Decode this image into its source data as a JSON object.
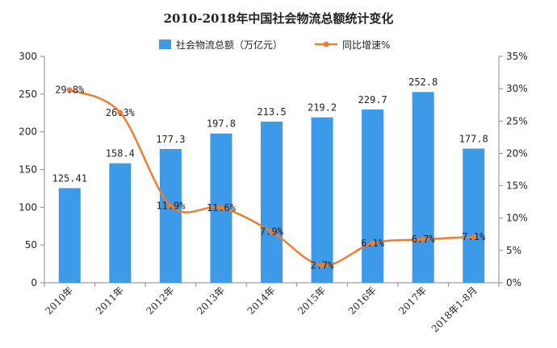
{
  "chart_data": {
    "type": "bar",
    "title": "2010-2018年中国社会物流总额统计变化",
    "categories": [
      "2010年",
      "2011年",
      "2012年",
      "2013年",
      "2014年",
      "2015年",
      "2016年",
      "2017年",
      "2018年1-8月"
    ],
    "series": [
      {
        "name": "社会物流总额（万亿元）",
        "type": "bar",
        "axis": "left",
        "values": [
          125.41,
          158.4,
          177.3,
          197.8,
          213.5,
          219.2,
          229.7,
          252.8,
          177.8
        ],
        "labels": [
          "125.41",
          "158.4",
          "177.3",
          "197.8",
          "213.5",
          "219.2",
          "229.7",
          "252.8",
          "177.8"
        ]
      },
      {
        "name": "同比增速%",
        "type": "line",
        "axis": "right",
        "values": [
          29.8,
          26.3,
          11.9,
          11.6,
          7.9,
          2.7,
          6.1,
          6.7,
          7.1
        ],
        "labels": [
          "29.8%",
          "26.3%",
          "11.9%",
          "11.6%",
          "7.9%",
          "2.7%",
          "6.1%",
          "6.7%",
          "7.1%"
        ]
      }
    ],
    "ylim_left": [
      0,
      300
    ],
    "yticks_left": [
      "0",
      "50",
      "100",
      "150",
      "200",
      "250",
      "300"
    ],
    "ylim_right": [
      0,
      35
    ],
    "yticks_right": [
      "0%",
      "5%",
      "10%",
      "15%",
      "20%",
      "25%",
      "30%",
      "35%"
    ],
    "grid": false,
    "legend_position": "top-center",
    "colors": {
      "bar": "#3d9ae8",
      "line": "#ec7d31",
      "text": "#222222",
      "axis": "#888888"
    }
  }
}
